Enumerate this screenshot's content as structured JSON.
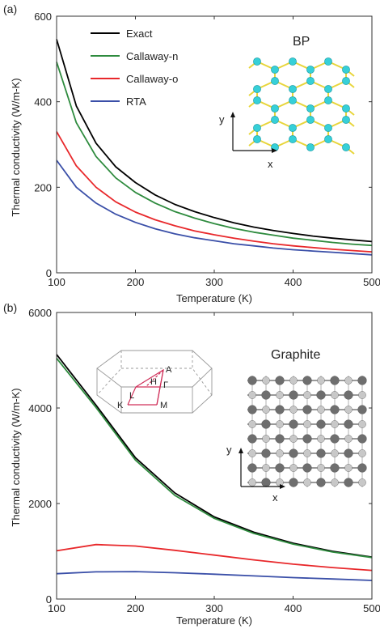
{
  "chart_data": [
    {
      "panel_label": "(a)",
      "type": "line",
      "title": "",
      "xlabel": "Temperature (K)",
      "ylabel": "Thermal conductivity (W/m-K)",
      "xlim": [
        100,
        500
      ],
      "ylim": [
        0,
        600
      ],
      "xticks": [
        100,
        200,
        300,
        400,
        500
      ],
      "yticks": [
        0,
        200,
        400,
        600
      ],
      "legend_position": "top-left",
      "annotation": "BP",
      "inset": {
        "type": "crystal-structure",
        "atom_color": "#36d0d8",
        "bond_color": "#e8d53a",
        "y_label": "y",
        "x_label": "x"
      },
      "x": [
        100,
        125,
        150,
        175,
        200,
        225,
        250,
        275,
        300,
        325,
        350,
        375,
        400,
        425,
        450,
        475,
        500
      ],
      "series": [
        {
          "name": "Exact",
          "color": "#000000",
          "values": [
            546,
            390,
            303,
            248,
            211,
            182,
            160,
            143,
            129,
            117,
            107,
            99,
            92,
            86,
            81,
            77,
            73
          ]
        },
        {
          "name": "Callaway-n",
          "color": "#2e8b3e",
          "values": [
            493,
            351,
            272,
            222,
            188,
            163,
            143,
            128,
            115,
            104,
            95,
            88,
            81,
            76,
            71,
            67,
            64
          ]
        },
        {
          "name": "Callaway-o",
          "color": "#e8282b",
          "values": [
            330,
            250,
            200,
            166,
            142,
            124,
            110,
            98,
            89,
            81,
            74,
            68,
            63,
            59,
            55,
            52,
            49
          ]
        },
        {
          "name": "RTA",
          "color": "#3a4fa8",
          "values": [
            263,
            200,
            163,
            137,
            118,
            103,
            91,
            82,
            75,
            68,
            63,
            58,
            54,
            51,
            48,
            45,
            42
          ]
        }
      ]
    },
    {
      "panel_label": "(b)",
      "type": "line",
      "title": "",
      "xlabel": "Temperature (K)",
      "ylabel": "Thermal conductivity (W/m-K)",
      "xlim": [
        100,
        500
      ],
      "ylim": [
        0,
        6000
      ],
      "xticks": [
        100,
        200,
        300,
        400,
        500
      ],
      "yticks": [
        0,
        2000,
        4000,
        6000
      ],
      "annotation": "Graphite",
      "brillouin_zone_labels": [
        "A",
        "H",
        "Γ",
        "L",
        "K",
        "M"
      ],
      "inset": {
        "type": "crystal-structure",
        "atom_dark": "#6e6e6e",
        "atom_light": "#c8c8c8",
        "y_label": "y",
        "x_label": "x"
      },
      "x": [
        100,
        150,
        200,
        250,
        300,
        350,
        400,
        450,
        500
      ],
      "series": [
        {
          "color": "#000000",
          "values": [
            5120,
            4060,
            2960,
            2220,
            1720,
            1400,
            1170,
            1000,
            880
          ]
        },
        {
          "color": "#2e8b3e",
          "values": [
            5040,
            4010,
            2910,
            2170,
            1690,
            1375,
            1150,
            985,
            870
          ]
        },
        {
          "color": "#e8282b",
          "values": [
            1010,
            1140,
            1110,
            1020,
            920,
            820,
            730,
            660,
            600
          ]
        },
        {
          "color": "#3a4fa8",
          "values": [
            530,
            570,
            575,
            550,
            520,
            485,
            450,
            420,
            390
          ]
        }
      ]
    }
  ]
}
